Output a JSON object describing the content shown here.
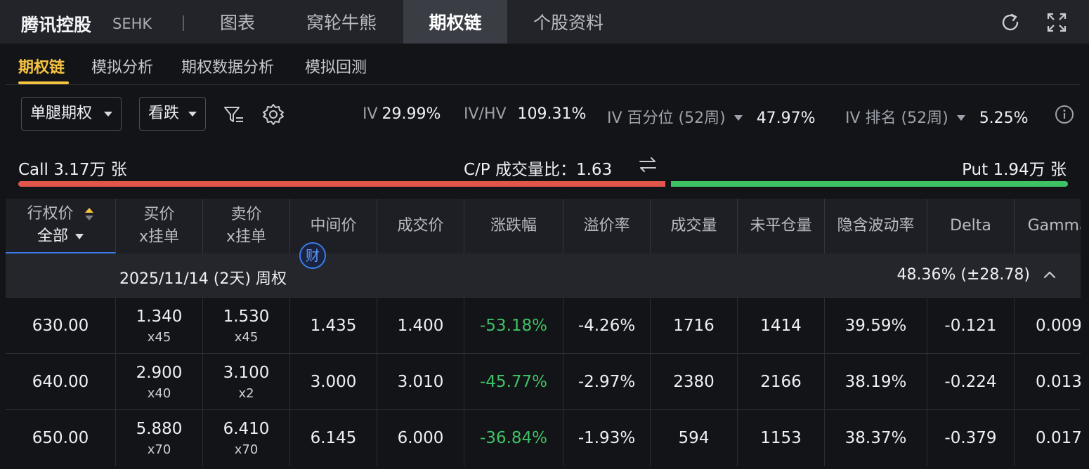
{
  "header": {
    "stock_name": "腾讯控股",
    "exchange": "SEHK",
    "tabs": [
      {
        "label": "图表",
        "active": false
      },
      {
        "label": "窝轮牛熊",
        "active": false
      },
      {
        "label": "期权链",
        "active": true
      },
      {
        "label": "个股资料",
        "active": false
      }
    ],
    "icons": [
      "refresh-icon",
      "fullscreen-icon"
    ]
  },
  "subtabs": [
    {
      "label": "期权链",
      "active": true
    },
    {
      "label": "模拟分析",
      "active": false
    },
    {
      "label": "期权数据分析",
      "active": false
    },
    {
      "label": "模拟回测",
      "active": false
    }
  ],
  "controls": {
    "strategy": "单腿期权",
    "direction": "看跌",
    "icons": [
      "filter-icon",
      "gear-icon",
      "info-icon"
    ]
  },
  "stats": {
    "iv_label": "IV",
    "iv_value": "29.99%",
    "ivhv_label": "IV/HV",
    "ivhv_value": "109.31%",
    "iv_pct_label": "IV 百分位 (52周)",
    "iv_pct_value": "47.97%",
    "iv_rank_label": "IV 排名 (52周)",
    "iv_rank_value": "5.25%"
  },
  "volume": {
    "call_text": "Call 3.17万 张",
    "cp_ratio_text": "C/P 成交量比：1.63",
    "put_text": "Put 1.94万 张",
    "call_share": 0.62,
    "call_color": "#e2554a",
    "put_color": "#3fc266"
  },
  "table": {
    "headers": {
      "strike_line1": "行权价",
      "strike_line2": "全部",
      "bid_line1": "买价",
      "bid_line2": "x挂单",
      "ask_line1": "卖价",
      "ask_line2": "x挂单",
      "mid": "中间价",
      "last": "成交价",
      "change": "涨跌幅",
      "premium": "溢价率",
      "volume": "成交量",
      "open_interest": "未平仓量",
      "iv": "隐含波动率",
      "delta": "Delta",
      "gamma": "Gamma"
    },
    "fin_badge": "财",
    "expiry": {
      "date_text": "2025/11/14 (2天) 周权",
      "iv_text": "48.36%  (±28.78)"
    },
    "rows": [
      {
        "strike": "630.00",
        "bid": "1.340",
        "bid_size": "x45",
        "ask": "1.530",
        "ask_size": "x45",
        "mid": "1.435",
        "last": "1.400",
        "change": "-53.18%",
        "premium": "-4.26%",
        "volume": "1716",
        "oi": "1414",
        "iv": "39.59%",
        "delta": "-0.121",
        "gamma": "0.009"
      },
      {
        "strike": "640.00",
        "bid": "2.900",
        "bid_size": "x40",
        "ask": "3.100",
        "ask_size": "x2",
        "mid": "3.000",
        "last": "3.010",
        "change": "-45.77%",
        "premium": "-2.97%",
        "volume": "2380",
        "oi": "2166",
        "iv": "38.19%",
        "delta": "-0.224",
        "gamma": "0.013"
      },
      {
        "strike": "650.00",
        "bid": "5.880",
        "bid_size": "x70",
        "ask": "6.410",
        "ask_size": "x70",
        "mid": "6.145",
        "last": "6.000",
        "change": "-36.84%",
        "premium": "-1.93%",
        "volume": "594",
        "oi": "1153",
        "iv": "38.37%",
        "delta": "-0.379",
        "gamma": "0.017"
      }
    ]
  }
}
